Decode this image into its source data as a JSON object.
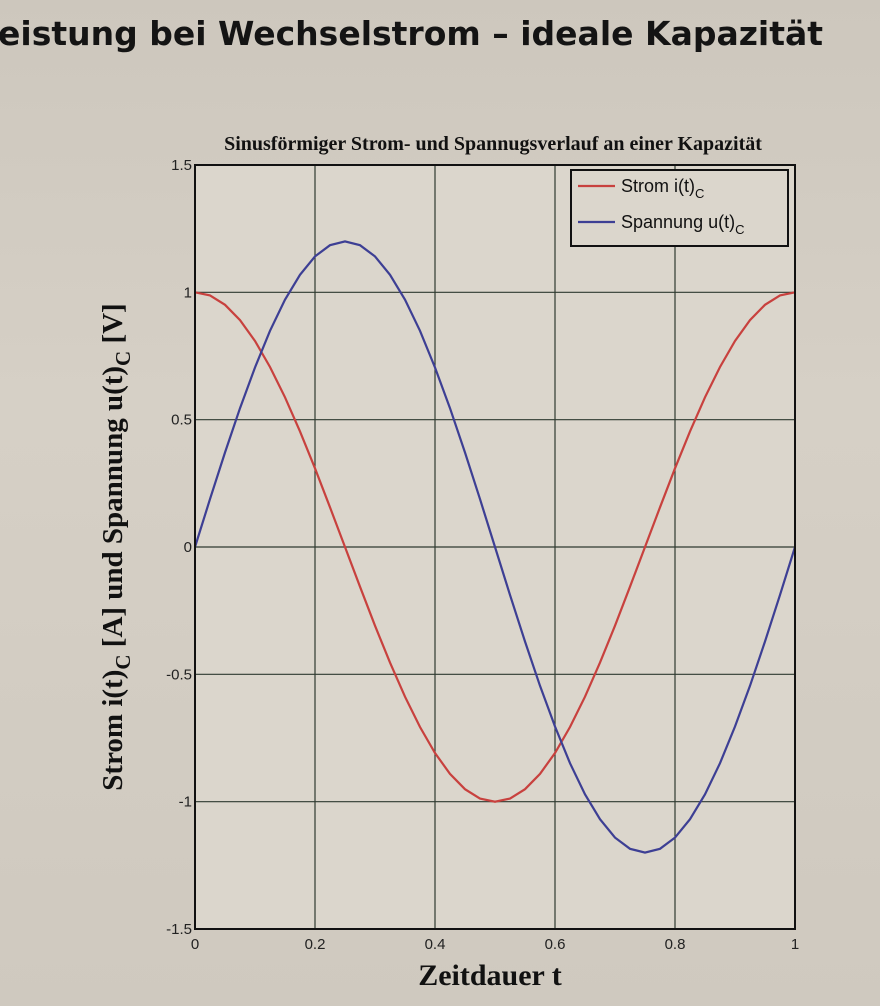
{
  "slide": {
    "title": "eistung bei Wechselstrom – ideale Kapazität"
  },
  "chart_data": {
    "type": "line",
    "title": "Sinusförmiger Strom- und Spannugsverlauf an einer Kapazität",
    "xlabel": "Zeitdauer t",
    "ylabel": "Strom i(t)C [A] und Spannung u(t)C [V]",
    "ylabel_parts": [
      "Strom i(t)",
      "C",
      " [A] und Spannung u(t)",
      "C",
      " [V]"
    ],
    "xlim": [
      0,
      1
    ],
    "ylim": [
      -1.5,
      1.5
    ],
    "xticks": [
      "0",
      "0.2",
      "0.4",
      "0.6",
      "0.8",
      "1"
    ],
    "yticks": [
      "-1.5",
      "-1",
      "-0.5",
      "0",
      "0.5",
      "1",
      "1.5"
    ],
    "grid": true,
    "legend_position": "top-right",
    "series": [
      {
        "name": "Strom i(t)C",
        "name_parts": [
          "Strom i(t)",
          "C"
        ],
        "color": "#c8413e",
        "x": [
          0,
          0.025,
          0.05,
          0.075,
          0.1,
          0.125,
          0.15,
          0.175,
          0.2,
          0.225,
          0.25,
          0.275,
          0.3,
          0.325,
          0.35,
          0.375,
          0.4,
          0.425,
          0.45,
          0.475,
          0.5,
          0.525,
          0.55,
          0.575,
          0.6,
          0.625,
          0.65,
          0.675,
          0.7,
          0.725,
          0.75,
          0.775,
          0.8,
          0.825,
          0.85,
          0.875,
          0.9,
          0.925,
          0.95,
          0.975,
          1
        ],
        "y": [
          1,
          0.988,
          0.951,
          0.891,
          0.809,
          0.707,
          0.588,
          0.454,
          0.309,
          0.156,
          0,
          -0.156,
          -0.309,
          -0.454,
          -0.588,
          -0.707,
          -0.809,
          -0.891,
          -0.951,
          -0.988,
          -1,
          -0.988,
          -0.951,
          -0.891,
          -0.809,
          -0.707,
          -0.588,
          -0.454,
          -0.309,
          -0.156,
          0,
          0.156,
          0.309,
          0.454,
          0.588,
          0.707,
          0.809,
          0.891,
          0.951,
          0.988,
          1
        ]
      },
      {
        "name": "Spannung u(t)C",
        "name_parts": [
          "Spannung u(t)",
          "C"
        ],
        "color": "#3d3f94",
        "x": [
          0,
          0.025,
          0.05,
          0.075,
          0.1,
          0.125,
          0.15,
          0.175,
          0.2,
          0.225,
          0.25,
          0.275,
          0.3,
          0.325,
          0.35,
          0.375,
          0.4,
          0.425,
          0.45,
          0.475,
          0.5,
          0.525,
          0.55,
          0.575,
          0.6,
          0.625,
          0.65,
          0.675,
          0.7,
          0.725,
          0.75,
          0.775,
          0.8,
          0.825,
          0.85,
          0.875,
          0.9,
          0.925,
          0.95,
          0.975,
          1
        ],
        "y": [
          0,
          0.188,
          0.371,
          0.545,
          0.705,
          0.849,
          0.971,
          1.069,
          1.141,
          1.185,
          1.2,
          1.185,
          1.141,
          1.069,
          0.971,
          0.849,
          0.705,
          0.545,
          0.371,
          0.188,
          0,
          -0.188,
          -0.371,
          -0.545,
          -0.705,
          -0.849,
          -0.971,
          -1.069,
          -1.141,
          -1.185,
          -1.2,
          -1.185,
          -1.141,
          -1.069,
          -0.971,
          -0.849,
          -0.705,
          -0.545,
          -0.371,
          -0.188,
          0
        ]
      }
    ]
  }
}
